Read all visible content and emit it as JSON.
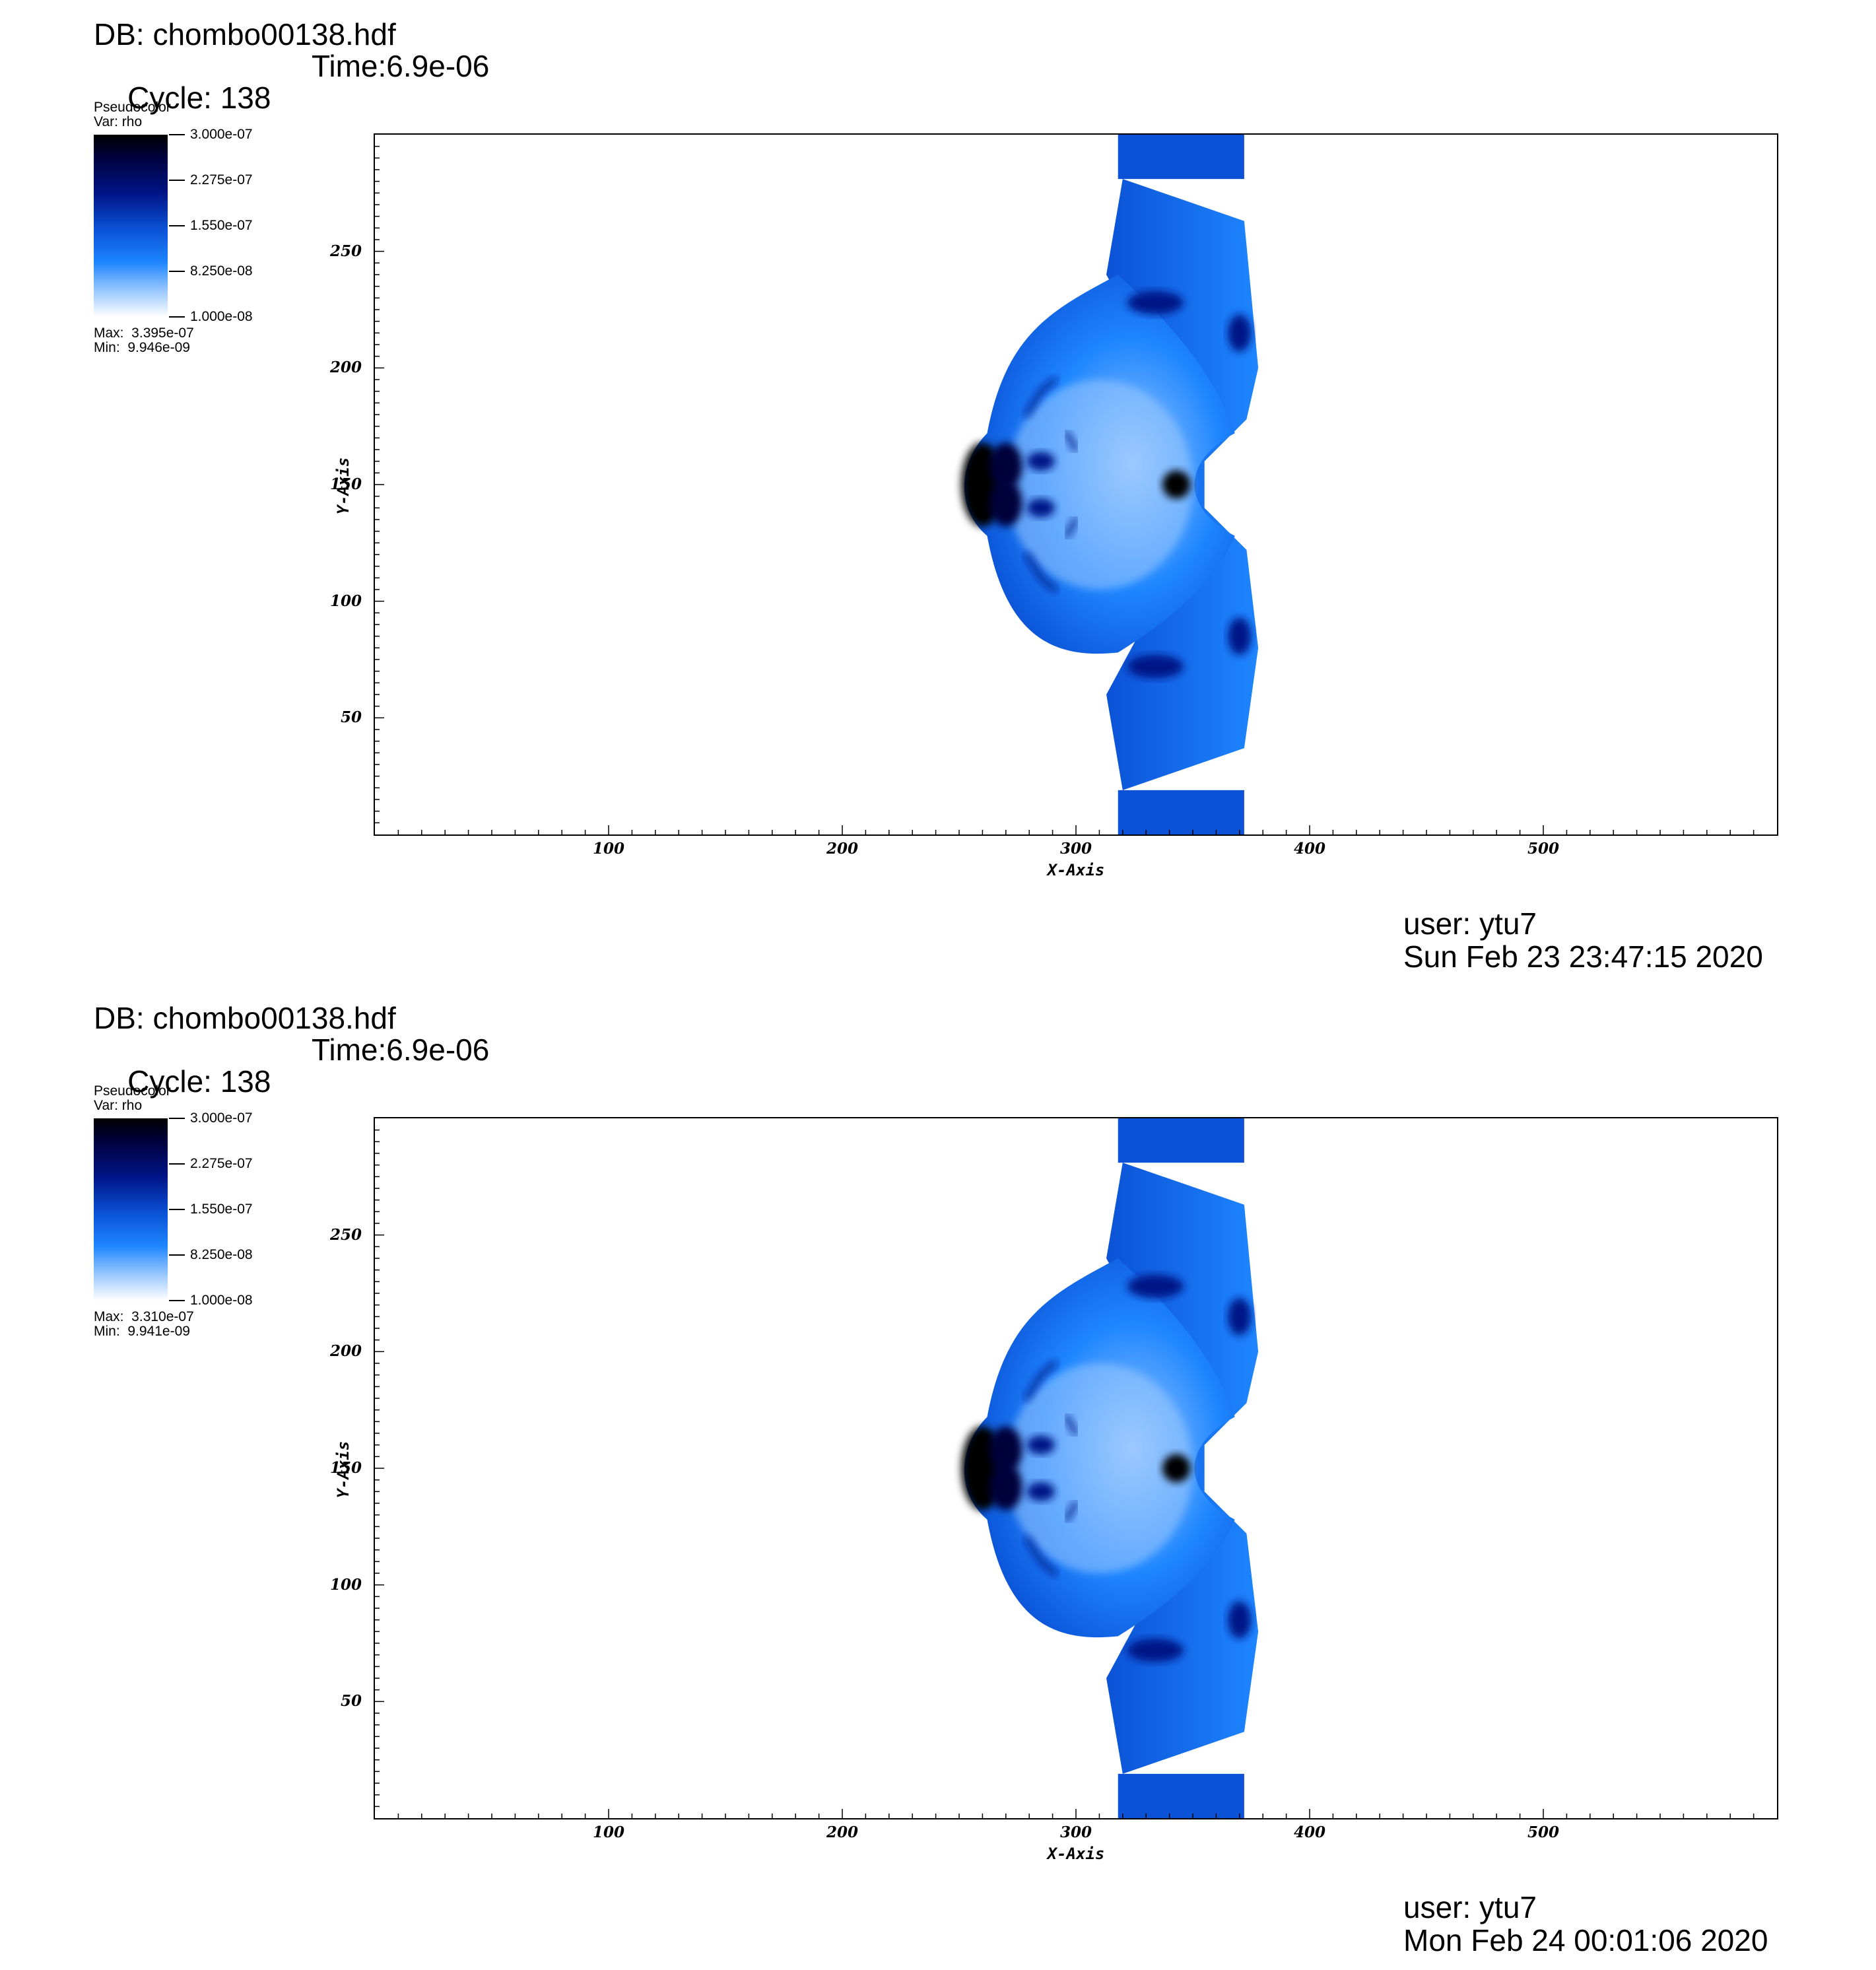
{
  "panels": [
    {
      "db_label": "DB: chombo00138.hdf",
      "cycle_label": "Cycle: 138",
      "time_label": "Time:6.9e-06",
      "legend": {
        "plot_type": "Pseudocolor",
        "variable": "Var: rho",
        "max_label": "Max:  3.395e-07",
        "min_label": "Min:  9.946e-09"
      },
      "user_label": "user: ytu7",
      "date_label": "Sun Feb 23 23:47:15 2020"
    },
    {
      "db_label": "DB: chombo00138.hdf",
      "cycle_label": "Cycle: 138",
      "time_label": "Time:6.9e-06",
      "legend": {
        "plot_type": "Pseudocolor",
        "variable": "Var: rho",
        "max_label": "Max:  3.310e-07",
        "min_label": "Min:  9.941e-09"
      },
      "user_label": "user: ytu7",
      "date_label": "Mon Feb 24 00:01:06 2020"
    }
  ],
  "chart_data": [
    {
      "type": "heatmap",
      "title": "",
      "variable": "rho",
      "xlabel": "X-Axis",
      "ylabel": "Y-Axis",
      "xlim": [
        0,
        600
      ],
      "ylim": [
        0,
        300
      ],
      "x_ticks": [
        "100",
        "200",
        "300",
        "400",
        "500"
      ],
      "y_ticks": [
        "50",
        "100",
        "150",
        "200",
        "250"
      ],
      "colorbar_labels": [
        "3.000e-07",
        "2.275e-07",
        "1.550e-07",
        "8.250e-08",
        "1.000e-08"
      ],
      "colorbar_range": [
        1e-08,
        3e-07
      ],
      "colormap_colors": [
        "#000000",
        "#00003a",
        "#001487",
        "#0b52d6",
        "#1e86ff",
        "#9cc9ff",
        "#ffffff"
      ],
      "data_max": 3.395e-07,
      "data_min": 9.946e-09,
      "grid": false
    },
    {
      "type": "heatmap",
      "title": "",
      "variable": "rho",
      "xlabel": "X-Axis",
      "ylabel": "Y-Axis",
      "xlim": [
        0,
        600
      ],
      "ylim": [
        0,
        300
      ],
      "x_ticks": [
        "100",
        "200",
        "300",
        "400",
        "500"
      ],
      "y_ticks": [
        "50",
        "100",
        "150",
        "200",
        "250"
      ],
      "colorbar_labels": [
        "3.000e-07",
        "2.275e-07",
        "1.550e-07",
        "8.250e-08",
        "1.000e-08"
      ],
      "colorbar_range": [
        1e-08,
        3e-07
      ],
      "colormap_colors": [
        "#000000",
        "#00003a",
        "#001487",
        "#0b52d6",
        "#1e86ff",
        "#9cc9ff",
        "#ffffff"
      ],
      "data_max": 3.31e-07,
      "data_min": 9.941e-09,
      "grid": false
    }
  ]
}
